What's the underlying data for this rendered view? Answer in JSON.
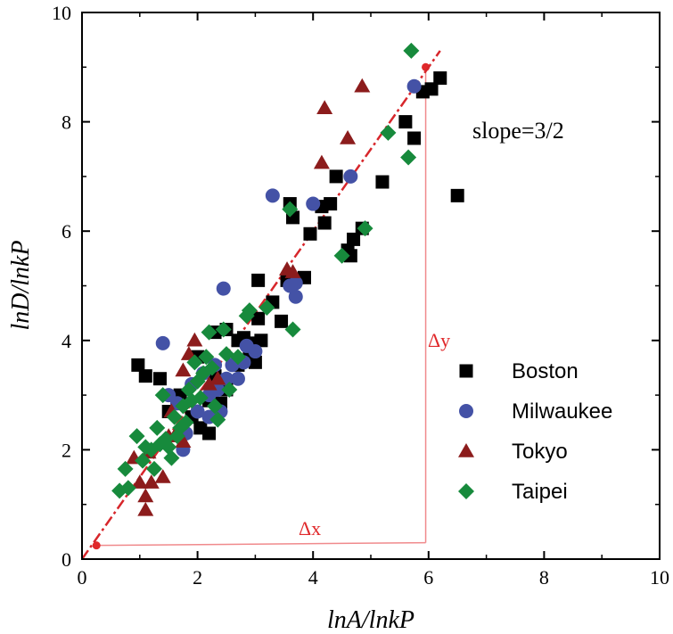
{
  "chart_data": {
    "type": "scatter",
    "xlabel": "lnA/lnkP",
    "ylabel": "lnD/lnkP",
    "xlim": [
      0,
      10
    ],
    "ylim": [
      0,
      10
    ],
    "x_ticks": [
      "0",
      "2",
      "4",
      "6",
      "8",
      "10"
    ],
    "y_ticks": [
      "0",
      "2",
      "4",
      "6",
      "8",
      "10"
    ],
    "grid": false,
    "legend_position": "right",
    "annotation": "slope=3/2",
    "delta_x_label": "Δx",
    "delta_y_label": "Δy",
    "fit_line": {
      "x": [
        0,
        6.2
      ],
      "y": [
        0,
        9.3
      ],
      "color": "#d7262b"
    },
    "triangle": {
      "p1": [
        0.25,
        0.25
      ],
      "p2": [
        5.95,
        0.3
      ],
      "p3": [
        5.95,
        9.0
      ],
      "color": "#f08a8c"
    },
    "series": [
      {
        "name": "Boston",
        "marker": "square",
        "color": "#000000",
        "points": [
          [
            0.97,
            3.55
          ],
          [
            1.1,
            3.35
          ],
          [
            1.35,
            3.3
          ],
          [
            1.5,
            2.7
          ],
          [
            1.7,
            3.0
          ],
          [
            1.9,
            2.6
          ],
          [
            2.05,
            2.4
          ],
          [
            2.2,
            2.3
          ],
          [
            2.0,
            3.7
          ],
          [
            2.3,
            4.15
          ],
          [
            2.5,
            4.2
          ],
          [
            2.7,
            4.0
          ],
          [
            2.9,
            3.8
          ],
          [
            2.3,
            3.35
          ],
          [
            2.2,
            2.9
          ],
          [
            2.4,
            2.85
          ],
          [
            2.5,
            3.1
          ],
          [
            2.7,
            3.55
          ],
          [
            2.8,
            4.05
          ],
          [
            3.0,
            3.6
          ],
          [
            3.05,
            4.4
          ],
          [
            3.1,
            4.0
          ],
          [
            2.9,
            3.95
          ],
          [
            3.05,
            5.1
          ],
          [
            3.3,
            4.7
          ],
          [
            3.45,
            4.35
          ],
          [
            3.55,
            5.1
          ],
          [
            3.6,
            6.5
          ],
          [
            3.65,
            6.25
          ],
          [
            3.85,
            5.15
          ],
          [
            3.95,
            5.95
          ],
          [
            4.15,
            6.45
          ],
          [
            4.2,
            6.15
          ],
          [
            4.3,
            6.5
          ],
          [
            4.4,
            7.0
          ],
          [
            4.6,
            5.65
          ],
          [
            4.65,
            5.55
          ],
          [
            4.7,
            5.85
          ],
          [
            4.85,
            6.05
          ],
          [
            5.2,
            6.9
          ],
          [
            5.6,
            8.0
          ],
          [
            5.75,
            7.7
          ],
          [
            5.9,
            8.55
          ],
          [
            6.05,
            8.6
          ],
          [
            6.2,
            8.8
          ],
          [
            6.5,
            6.65
          ]
        ]
      },
      {
        "name": "Milwaukee",
        "marker": "circle",
        "color": "#4452a6",
        "points": [
          [
            1.4,
            3.95
          ],
          [
            1.5,
            3.0
          ],
          [
            1.65,
            2.85
          ],
          [
            1.75,
            2.0
          ],
          [
            1.8,
            2.3
          ],
          [
            1.9,
            3.2
          ],
          [
            2.0,
            2.7
          ],
          [
            2.1,
            3.4
          ],
          [
            2.2,
            3.0
          ],
          [
            2.2,
            2.6
          ],
          [
            2.3,
            3.55
          ],
          [
            2.35,
            3.1
          ],
          [
            2.4,
            2.7
          ],
          [
            2.45,
            4.95
          ],
          [
            2.5,
            3.3
          ],
          [
            2.6,
            3.55
          ],
          [
            2.7,
            3.3
          ],
          [
            2.8,
            3.6
          ],
          [
            2.85,
            3.9
          ],
          [
            3.0,
            3.8
          ],
          [
            3.3,
            6.65
          ],
          [
            3.6,
            5.0
          ],
          [
            3.7,
            5.05
          ],
          [
            3.7,
            4.8
          ],
          [
            4.0,
            6.5
          ],
          [
            4.65,
            7.0
          ],
          [
            5.75,
            8.65
          ]
        ]
      },
      {
        "name": "Tokyo",
        "marker": "triangle",
        "color": "#8c1c1c",
        "points": [
          [
            0.9,
            1.85
          ],
          [
            1.0,
            1.4
          ],
          [
            1.1,
            0.9
          ],
          [
            1.1,
            1.15
          ],
          [
            1.15,
            1.95
          ],
          [
            1.2,
            1.4
          ],
          [
            1.4,
            1.5
          ],
          [
            1.5,
            2.25
          ],
          [
            1.55,
            2.7
          ],
          [
            1.6,
            2.25
          ],
          [
            1.75,
            2.15
          ],
          [
            1.75,
            3.45
          ],
          [
            1.85,
            3.75
          ],
          [
            1.95,
            4.0
          ],
          [
            2.2,
            3.2
          ],
          [
            2.35,
            3.3
          ],
          [
            3.55,
            5.3
          ],
          [
            3.65,
            5.25
          ],
          [
            4.15,
            7.25
          ],
          [
            4.2,
            8.25
          ],
          [
            4.6,
            7.7
          ],
          [
            4.85,
            8.65
          ]
        ]
      },
      {
        "name": "Taipei",
        "marker": "diamond",
        "color": "#178a3c",
        "points": [
          [
            0.65,
            1.25
          ],
          [
            0.75,
            1.65
          ],
          [
            0.8,
            1.3
          ],
          [
            0.95,
            2.25
          ],
          [
            1.05,
            1.8
          ],
          [
            1.1,
            2.05
          ],
          [
            1.2,
            2.0
          ],
          [
            1.25,
            1.65
          ],
          [
            1.3,
            2.4
          ],
          [
            1.35,
            2.1
          ],
          [
            1.4,
            3.0
          ],
          [
            1.45,
            2.2
          ],
          [
            1.5,
            2.05
          ],
          [
            1.55,
            1.85
          ],
          [
            1.6,
            2.6
          ],
          [
            1.65,
            2.25
          ],
          [
            1.7,
            2.4
          ],
          [
            1.75,
            2.8
          ],
          [
            1.8,
            2.5
          ],
          [
            1.85,
            3.1
          ],
          [
            1.9,
            2.9
          ],
          [
            1.95,
            3.6
          ],
          [
            2.0,
            3.25
          ],
          [
            2.05,
            2.95
          ],
          [
            2.1,
            3.4
          ],
          [
            2.15,
            3.7
          ],
          [
            2.2,
            4.15
          ],
          [
            2.25,
            3.5
          ],
          [
            2.3,
            2.8
          ],
          [
            2.35,
            2.55
          ],
          [
            2.45,
            4.2
          ],
          [
            2.5,
            3.75
          ],
          [
            2.55,
            3.1
          ],
          [
            2.7,
            3.7
          ],
          [
            2.85,
            4.45
          ],
          [
            2.9,
            4.55
          ],
          [
            3.2,
            4.6
          ],
          [
            3.6,
            6.4
          ],
          [
            3.65,
            4.2
          ],
          [
            4.5,
            5.55
          ],
          [
            4.9,
            6.05
          ],
          [
            5.3,
            7.8
          ],
          [
            5.65,
            7.35
          ],
          [
            5.7,
            9.3
          ]
        ]
      }
    ]
  }
}
